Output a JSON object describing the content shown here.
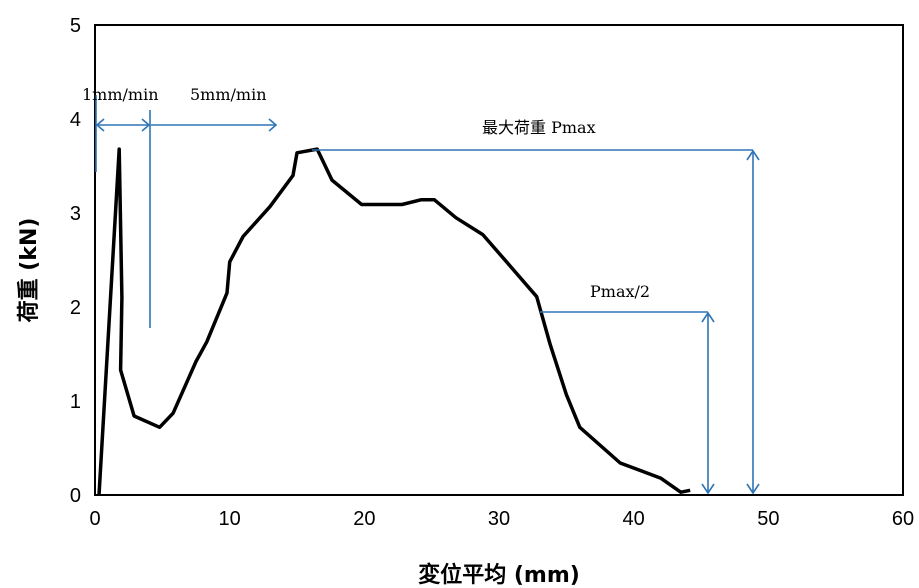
{
  "chart_data": {
    "type": "line",
    "title": "",
    "xlabel": "変位平均 (mm)",
    "ylabel": "荷重 (kN)",
    "xlim": [
      0,
      60
    ],
    "ylim": [
      0,
      5
    ],
    "x_ticks": [
      "0",
      "10",
      "20",
      "30",
      "40",
      "50",
      "60"
    ],
    "y_ticks": [
      "0",
      "1",
      "2",
      "3",
      "4",
      "5"
    ],
    "grid": false,
    "series": [
      {
        "color": "#000000",
        "points": [
          [
            0.3,
            0.0
          ],
          [
            1.8,
            3.68
          ],
          [
            2.0,
            2.1
          ],
          [
            1.9,
            1.33
          ],
          [
            2.9,
            0.84
          ],
          [
            4.8,
            0.72
          ],
          [
            5.8,
            0.87
          ],
          [
            7.5,
            1.42
          ],
          [
            8.3,
            1.63
          ],
          [
            9.8,
            2.15
          ],
          [
            10.0,
            2.48
          ],
          [
            11.0,
            2.75
          ],
          [
            13.0,
            3.07
          ],
          [
            14.7,
            3.4
          ],
          [
            15.0,
            3.64
          ],
          [
            16.5,
            3.68
          ],
          [
            17.6,
            3.35
          ],
          [
            19.8,
            3.09
          ],
          [
            22.8,
            3.09
          ],
          [
            24.2,
            3.14
          ],
          [
            25.2,
            3.14
          ],
          [
            26.8,
            2.95
          ],
          [
            28.8,
            2.77
          ],
          [
            30.8,
            2.44
          ],
          [
            32.8,
            2.11
          ],
          [
            33.8,
            1.6
          ],
          [
            35.0,
            1.07
          ],
          [
            36.0,
            0.72
          ],
          [
            39.0,
            0.34
          ],
          [
            42.0,
            0.18
          ],
          [
            43.5,
            0.03
          ],
          [
            44.2,
            0.05
          ]
        ]
      }
    ],
    "annotations": {
      "rate1": "1mm/min",
      "rate2": "5mm/min",
      "pmax": "最大荷重 Pmax",
      "pmax_half": "Pmax/2",
      "annotation_color": "#2e75b6"
    }
  }
}
